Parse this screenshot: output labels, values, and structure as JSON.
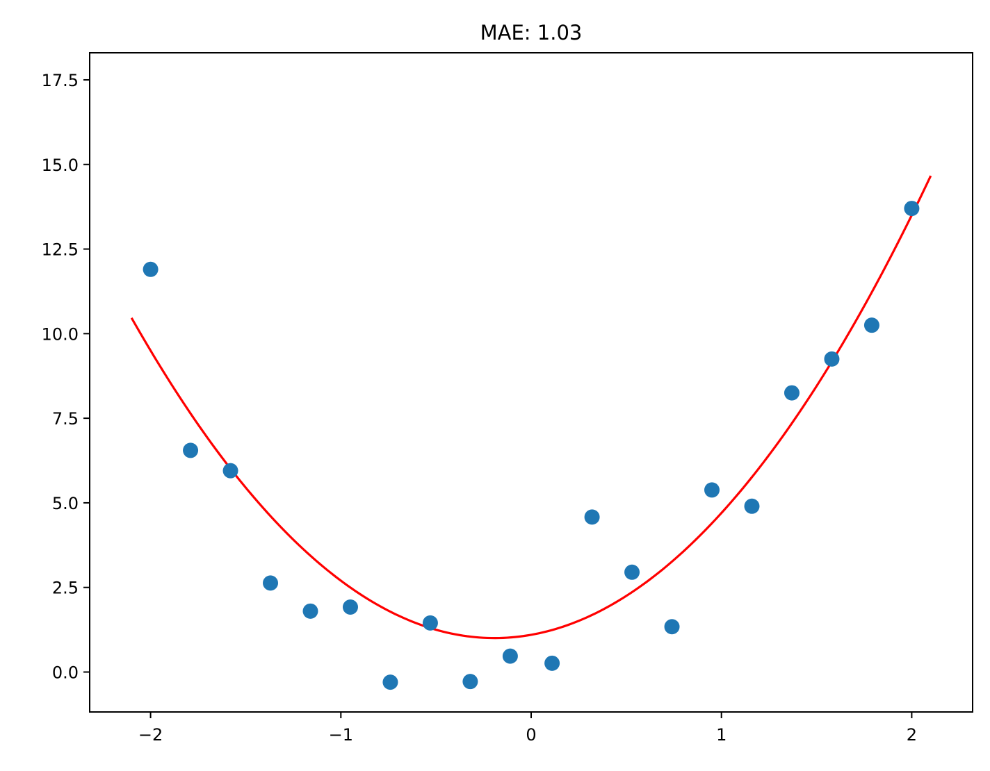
{
  "chart_data": {
    "type": "scatter",
    "title": "MAE: 1.03",
    "xlabel": "",
    "ylabel": "",
    "xlim": [
      -2.32,
      2.32
    ],
    "ylim": [
      -1.18,
      18.3
    ],
    "grid": false,
    "x_ticks": [
      -2,
      -1,
      0,
      1,
      2
    ],
    "x_tick_labels": [
      "−2",
      "−1",
      "0",
      "1",
      "2"
    ],
    "y_ticks": [
      0.0,
      2.5,
      5.0,
      7.5,
      10.0,
      12.5,
      15.0,
      17.5
    ],
    "y_tick_labels": [
      "0.0",
      "2.5",
      "5.0",
      "7.5",
      "10.0",
      "12.5",
      "15.0",
      "17.5"
    ],
    "scatter": {
      "color": "#1f77b4",
      "points": [
        {
          "x": -2.0,
          "y": 11.9
        },
        {
          "x": -1.79,
          "y": 6.55
        },
        {
          "x": -1.58,
          "y": 5.95
        },
        {
          "x": -1.37,
          "y": 2.63
        },
        {
          "x": -1.16,
          "y": 1.8
        },
        {
          "x": -0.95,
          "y": 1.92
        },
        {
          "x": -0.74,
          "y": -0.3
        },
        {
          "x": -0.53,
          "y": 1.45
        },
        {
          "x": -0.32,
          "y": -0.28
        },
        {
          "x": -0.11,
          "y": 0.47
        },
        {
          "x": 0.11,
          "y": 0.26
        },
        {
          "x": 0.32,
          "y": 4.58
        },
        {
          "x": 0.53,
          "y": 2.95
        },
        {
          "x": 0.74,
          "y": 1.34
        },
        {
          "x": 0.95,
          "y": 5.38
        },
        {
          "x": 1.16,
          "y": 4.9
        },
        {
          "x": 1.37,
          "y": 8.25
        },
        {
          "x": 1.58,
          "y": 9.25
        },
        {
          "x": 1.79,
          "y": 10.25
        },
        {
          "x": 2.0,
          "y": 13.7
        }
      ]
    },
    "fit_curve": {
      "color": "#ff0000",
      "x_range": [
        -2.1,
        2.1
      ],
      "coefficients": {
        "a": 2.6,
        "b": 1.0,
        "c": 1.1
      }
    }
  }
}
